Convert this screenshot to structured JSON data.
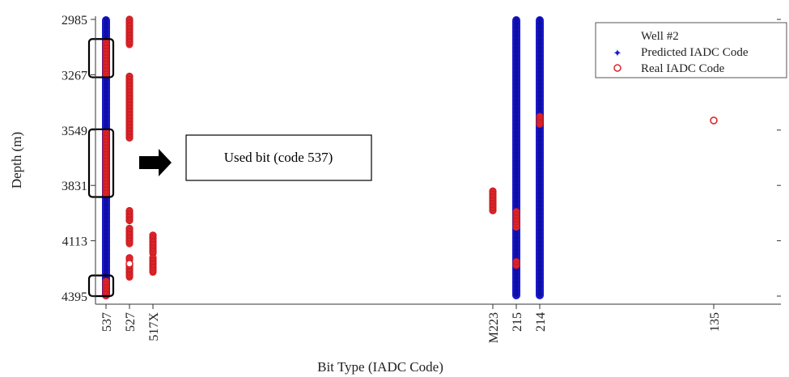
{
  "chart_data": {
    "type": "scatter",
    "xlabel": "Bit Type (IADC Code)",
    "ylabel": "Depth (m)",
    "categories": [
      "537",
      "527",
      "517X",
      "M223",
      "215",
      "214",
      "135"
    ],
    "y_ticks": [
      2985,
      3267,
      3549,
      3831,
      4113,
      4395
    ],
    "ylim": [
      2985,
      4395
    ],
    "y_inverted": true,
    "grid": false,
    "legend": {
      "title": "Well #2",
      "placement": "top-right",
      "entries": [
        "Predicted IADC Code",
        "Real IADC Code"
      ]
    },
    "series": [
      {
        "name": "Predicted IADC Code",
        "color": "#1a1acc",
        "marker": "filled-dot",
        "segments": [
          {
            "category": "537",
            "from": 2985,
            "to": 4395
          },
          {
            "category": "215",
            "from": 2985,
            "to": 4395
          },
          {
            "category": "214",
            "from": 2985,
            "to": 4395
          }
        ]
      },
      {
        "name": "Real IADC Code",
        "color": "#e0242a",
        "marker": "circle",
        "segments": [
          {
            "category": "537",
            "from": 3100,
            "to": 3265
          },
          {
            "category": "537",
            "from": 3560,
            "to": 3875
          },
          {
            "category": "537",
            "from": 4320,
            "to": 4395
          },
          {
            "category": "527",
            "from": 2985,
            "to": 3115
          },
          {
            "category": "527",
            "from": 3275,
            "to": 3590
          },
          {
            "category": "527",
            "from": 3960,
            "to": 4010
          },
          {
            "category": "527",
            "from": 4050,
            "to": 4130
          },
          {
            "category": "527",
            "from": 4200,
            "to": 4215
          },
          {
            "category": "527",
            "from": 4240,
            "to": 4300
          },
          {
            "category": "517X",
            "from": 4085,
            "to": 4180
          },
          {
            "category": "517X",
            "from": 4200,
            "to": 4275
          },
          {
            "category": "M223",
            "from": 3860,
            "to": 3960
          },
          {
            "category": "215",
            "from": 3965,
            "to": 4045
          },
          {
            "category": "215",
            "from": 4220,
            "to": 4240
          },
          {
            "category": "214",
            "from": 3480,
            "to": 3520
          }
        ],
        "points": [
          {
            "category": "527",
            "y": 4230
          },
          {
            "category": "135",
            "y": 3500
          }
        ]
      }
    ],
    "annotations": [
      {
        "text": "Used bit (code 537)",
        "points_to": "537",
        "range": [
          3560,
          3875
        ]
      }
    ],
    "highlight_boxes": [
      {
        "category": "537",
        "from": 3085,
        "to": 3280
      },
      {
        "category": "537",
        "from": 3545,
        "to": 3890
      },
      {
        "category": "537",
        "from": 4290,
        "to": 4395
      }
    ]
  }
}
